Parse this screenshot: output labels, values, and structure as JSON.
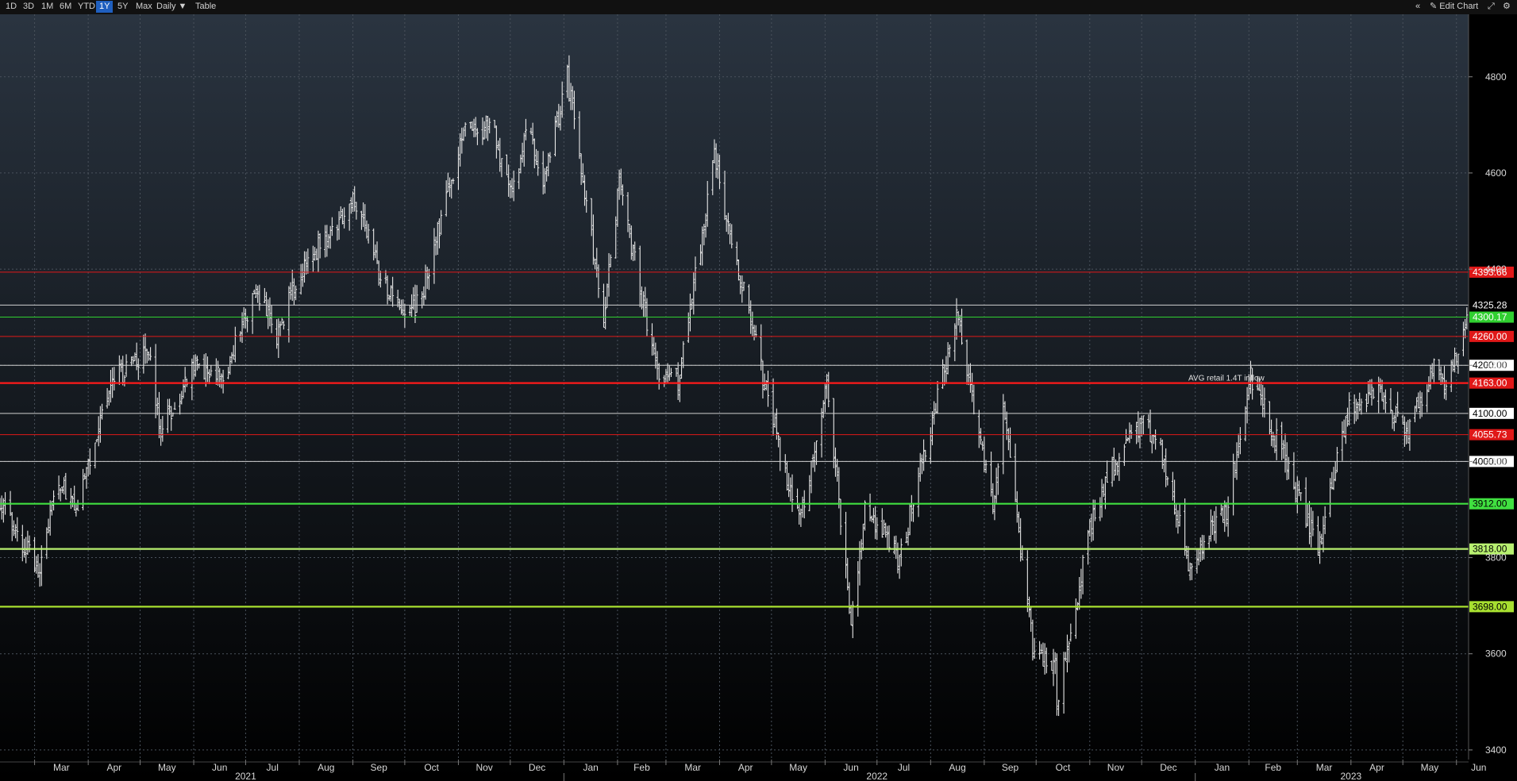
{
  "toolbar": {
    "ranges": [
      {
        "label": "1D",
        "active": false
      },
      {
        "label": "3D",
        "active": false
      },
      {
        "label": "1M",
        "active": false
      },
      {
        "label": "6M",
        "active": false
      },
      {
        "label": "YTD",
        "active": false
      },
      {
        "label": "1Y",
        "active": true
      },
      {
        "label": "5Y",
        "active": false
      },
      {
        "label": "Max",
        "active": false
      }
    ],
    "interval": "Daily ▼",
    "table": "Table",
    "collapse": "«",
    "edit_chart": "✎ Edit Chart",
    "resize": "⤢",
    "settings": "⚙"
  },
  "chart_data": {
    "type": "ohlc",
    "ylim": [
      3380,
      4930
    ],
    "yticks": [
      3400,
      3600,
      3800,
      4000,
      4200,
      4400,
      4600,
      4800
    ],
    "x_start": "2021-02-09",
    "x_end": "2023-06-08",
    "month_labels": [
      {
        "label": "Mar",
        "date": "2021-03-01"
      },
      {
        "label": "Apr",
        "date": "2021-04-01"
      },
      {
        "label": "May",
        "date": "2021-05-01"
      },
      {
        "label": "Jun",
        "date": "2021-06-01"
      },
      {
        "label": "Jul",
        "date": "2021-07-01"
      },
      {
        "label": "Aug",
        "date": "2021-08-01"
      },
      {
        "label": "Sep",
        "date": "2021-09-01"
      },
      {
        "label": "Oct",
        "date": "2021-10-01"
      },
      {
        "label": "Nov",
        "date": "2021-11-01"
      },
      {
        "label": "Dec",
        "date": "2021-12-01"
      },
      {
        "label": "Jan",
        "date": "2022-01-01"
      },
      {
        "label": "Feb",
        "date": "2022-02-01"
      },
      {
        "label": "Mar",
        "date": "2022-03-01"
      },
      {
        "label": "Apr",
        "date": "2022-04-01"
      },
      {
        "label": "May",
        "date": "2022-05-01"
      },
      {
        "label": "Jun",
        "date": "2022-06-01"
      },
      {
        "label": "Jul",
        "date": "2022-07-01"
      },
      {
        "label": "Aug",
        "date": "2022-08-01"
      },
      {
        "label": "Sep",
        "date": "2022-09-01"
      },
      {
        "label": "Oct",
        "date": "2022-10-01"
      },
      {
        "label": "Nov",
        "date": "2022-11-01"
      },
      {
        "label": "Dec",
        "date": "2022-12-01"
      },
      {
        "label": "Jan",
        "date": "2023-01-01"
      },
      {
        "label": "Feb",
        "date": "2023-02-01"
      },
      {
        "label": "Mar",
        "date": "2023-03-01"
      },
      {
        "label": "Apr",
        "date": "2023-04-01"
      },
      {
        "label": "May",
        "date": "2023-05-01"
      },
      {
        "label": "Jun",
        "date": "2023-06-01"
      }
    ],
    "year_labels": [
      {
        "label": "2021",
        "date": "2021-07-01"
      },
      {
        "label": "2022",
        "date": "2022-07-01"
      },
      {
        "label": "2023",
        "date": "2023-04-01"
      }
    ],
    "year_boundaries": [
      "2022-01-01",
      "2023-01-01"
    ],
    "price_path": [
      {
        "date": "2021-02-09",
        "close": 3910
      },
      {
        "date": "2021-03-04",
        "close": 3770
      },
      {
        "date": "2021-03-15",
        "close": 3970
      },
      {
        "date": "2021-03-25",
        "close": 3900
      },
      {
        "date": "2021-04-15",
        "close": 4170
      },
      {
        "date": "2021-05-07",
        "close": 4230
      },
      {
        "date": "2021-05-12",
        "close": 4060
      },
      {
        "date": "2021-06-01",
        "close": 4200
      },
      {
        "date": "2021-06-18",
        "close": 4170
      },
      {
        "date": "2021-07-07",
        "close": 4360
      },
      {
        "date": "2021-07-19",
        "close": 4260
      },
      {
        "date": "2021-08-02",
        "close": 4400
      },
      {
        "date": "2021-08-31",
        "close": 4530
      },
      {
        "date": "2021-09-02",
        "close": 4540
      },
      {
        "date": "2021-09-20",
        "close": 4360
      },
      {
        "date": "2021-10-04",
        "close": 4300
      },
      {
        "date": "2021-10-12",
        "close": 4360
      },
      {
        "date": "2021-11-05",
        "close": 4700
      },
      {
        "date": "2021-11-22",
        "close": 4690
      },
      {
        "date": "2021-11-30",
        "close": 4560
      },
      {
        "date": "2021-12-06",
        "close": 4590
      },
      {
        "date": "2021-12-10",
        "close": 4710
      },
      {
        "date": "2021-12-20",
        "close": 4570
      },
      {
        "date": "2022-01-03",
        "close": 4800
      },
      {
        "date": "2022-01-24",
        "close": 4300
      },
      {
        "date": "2022-02-02",
        "close": 4580
      },
      {
        "date": "2022-02-24",
        "close": 4180
      },
      {
        "date": "2022-03-08",
        "close": 4170
      },
      {
        "date": "2022-03-29",
        "close": 4630
      },
      {
        "date": "2022-04-12",
        "close": 4400
      },
      {
        "date": "2022-04-29",
        "close": 4130
      },
      {
        "date": "2022-05-12",
        "close": 3930
      },
      {
        "date": "2022-05-20",
        "close": 3900
      },
      {
        "date": "2022-06-02",
        "close": 4170
      },
      {
        "date": "2022-06-16",
        "close": 3670
      },
      {
        "date": "2022-06-24",
        "close": 3910
      },
      {
        "date": "2022-07-14",
        "close": 3790
      },
      {
        "date": "2022-08-02",
        "close": 4090
      },
      {
        "date": "2022-08-16",
        "close": 4305
      },
      {
        "date": "2022-09-06",
        "close": 3910
      },
      {
        "date": "2022-09-12",
        "close": 4110
      },
      {
        "date": "2022-09-30",
        "close": 3590
      },
      {
        "date": "2022-10-12",
        "close": 3580
      },
      {
        "date": "2022-10-13",
        "close": 3490
      },
      {
        "date": "2022-11-01",
        "close": 3860
      },
      {
        "date": "2022-11-10",
        "close": 3960
      },
      {
        "date": "2022-12-01",
        "close": 4080
      },
      {
        "date": "2022-12-13",
        "close": 4020
      },
      {
        "date": "2022-12-28",
        "close": 3790
      },
      {
        "date": "2023-01-19",
        "close": 3900
      },
      {
        "date": "2023-02-02",
        "close": 4180
      },
      {
        "date": "2023-02-23",
        "close": 3990
      },
      {
        "date": "2023-03-13",
        "close": 3820
      },
      {
        "date": "2023-03-31",
        "close": 4110
      },
      {
        "date": "2023-04-18",
        "close": 4150
      },
      {
        "date": "2023-05-04",
        "close": 4060
      },
      {
        "date": "2023-05-19",
        "close": 4190
      },
      {
        "date": "2023-05-25",
        "close": 4150
      },
      {
        "date": "2023-06-07",
        "close": 4290
      }
    ],
    "levels": [
      {
        "value": 4393.66,
        "label": "4393.66",
        "color": "#e01818",
        "badge_bg": "#e01818",
        "badge_fg": "#ffffff",
        "weight": "thin",
        "dashed": false
      },
      {
        "value": 4325.28,
        "label": "4325.28",
        "color": "#d0d0d0",
        "badge_bg": "#000000",
        "badge_fg": "#ffffff",
        "weight": "thin",
        "dashed": false
      },
      {
        "value": 4300.17,
        "label": "4300.17",
        "color": "#30d030",
        "badge_bg": "#30d030",
        "badge_fg": "#ffffff",
        "weight": "thin",
        "dashed": false
      },
      {
        "value": 4260.0,
        "label": "4260.00",
        "color": "#e01818",
        "badge_bg": "#e01818",
        "badge_fg": "#ffffff",
        "weight": "thin",
        "dashed": false
      },
      {
        "value": 4200.0,
        "label": "4200.00",
        "color": "#d0d0d0",
        "badge_bg": "#ffffff",
        "badge_fg": "#000000",
        "weight": "thin",
        "dashed": false
      },
      {
        "value": 4163.0,
        "label": "4163.00",
        "color": "#ff1a1a",
        "badge_bg": "#e01818",
        "badge_fg": "#ffffff",
        "weight": "thick",
        "dashed": false
      },
      {
        "value": 4100.0,
        "label": "4100.00",
        "color": "#d0d0d0",
        "badge_bg": "#ffffff",
        "badge_fg": "#000000",
        "weight": "thin",
        "dashed": false
      },
      {
        "value": 4055.73,
        "label": "4055.73",
        "color": "#e01818",
        "badge_bg": "#e01818",
        "badge_fg": "#ffffff",
        "weight": "thin",
        "dashed": false
      },
      {
        "value": 4000.0,
        "label": "4000.00",
        "color": "#d0d0d0",
        "badge_bg": "#ffffff",
        "badge_fg": "#000000",
        "weight": "thin",
        "dashed": false
      },
      {
        "value": 3912.0,
        "label": "3912.00",
        "color": "#40e040",
        "badge_bg": "#40e040",
        "badge_fg": "#000000",
        "weight": "thick",
        "dashed": false
      },
      {
        "value": 3818.0,
        "label": "3818.00",
        "color": "#b8f070",
        "badge_bg": "#b8f070",
        "badge_fg": "#000000",
        "weight": "thick",
        "dashed": false
      },
      {
        "value": 3698.0,
        "label": "3698.00",
        "color": "#a8e030",
        "badge_bg": "#a8e030",
        "badge_fg": "#000000",
        "weight": "thick",
        "dashed": false
      }
    ],
    "annotations": [
      {
        "text": "AVG retail 1.4T inflow",
        "date": "2022-12-28",
        "value": 4175,
        "anchor": "start"
      }
    ],
    "grid": true,
    "axis_side": "right"
  },
  "colors": {
    "background_top": "#2a3440",
    "background_bottom": "#000000",
    "grid": "#4a525c",
    "bars": "#e8e8e8",
    "axis_text": "#d8d8d8"
  }
}
